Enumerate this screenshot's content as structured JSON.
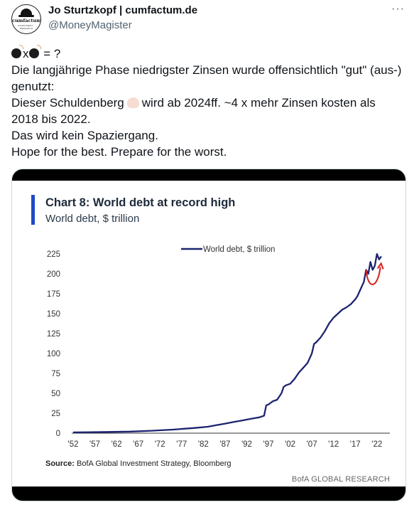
{
  "tweet": {
    "author_name": "Jo Sturtzkopf | cumfactum.de",
    "handle": "@MoneyMagister",
    "more_label": "···",
    "avatar_text": "cumfactum",
    "avatar_subtext": "INVESTMENT · RESEARCH",
    "line1_mid": "x",
    "line1_end": " = ?",
    "line2": "Die langjährige Phase niedrigster Zinsen wurde offensichtlich \"gut\" (aus-)",
    "line3": "genutzt:",
    "line4_a": "Dieser Schuldenberg",
    "line4_b": "wird ab 2024ff. ~4 x mehr Zinsen kosten als",
    "line5": "2018 bis 2022.",
    "line6": "Das wird kein Spaziergang.",
    "line7": "Hope for the best. Prepare for the worst.",
    "icons": [
      "bomb-icon",
      "pointing-down-finger-icon"
    ]
  },
  "chart_data": {
    "type": "line",
    "title": "Chart 8: World debt at record high",
    "subtitle": "World debt, $ trillion",
    "legend": "World debt, $ trillion",
    "legend_position": "top-center",
    "ylim": [
      0,
      225
    ],
    "yticks": [
      "0",
      "25",
      "50",
      "75",
      "100",
      "125",
      "150",
      "175",
      "200",
      "225"
    ],
    "xticks": [
      "'52",
      "'57",
      "'62",
      "'67",
      "'72",
      "'77",
      "'82",
      "'87",
      "'92",
      "'97",
      "'02",
      "'07",
      "'12",
      "'17",
      "'22"
    ],
    "xlim": [
      1952,
      2024
    ],
    "source_label": "Source:",
    "source": "BofA Global Investment Strategy, Bloomberg",
    "brand": "BofA GLOBAL RESEARCH",
    "line_color": "#1c2470",
    "annotation_color": "#d81e1e",
    "annotation": "red curved arrow (dip and rebound) near the end of the series",
    "series": [
      {
        "name": "World debt, $ trillion",
        "x": [
          1952,
          1960,
          1965,
          1970,
          1975,
          1980,
          1983,
          1985,
          1987,
          1989,
          1991,
          1993,
          1995,
          1996,
          1996.5,
          1997,
          1998,
          1999,
          2000,
          2000.5,
          2001,
          2002,
          2003,
          2004,
          2005,
          2006,
          2007,
          2007.5,
          2008,
          2009,
          2010,
          2011,
          2012,
          2013,
          2014,
          2015,
          2016,
          2017,
          2017.5,
          2018,
          2019,
          2019.5,
          2020,
          2020.5,
          2021,
          2021.5,
          2022,
          2022.5,
          2023
        ],
        "values": [
          1,
          1.5,
          2,
          3,
          4.5,
          6.5,
          8,
          10,
          12,
          14,
          16,
          18,
          20,
          22,
          35,
          36,
          40,
          42,
          50,
          58,
          60,
          62,
          68,
          76,
          82,
          88,
          100,
          112,
          114,
          120,
          128,
          138,
          145,
          150,
          155,
          158,
          162,
          168,
          172,
          178,
          190,
          205,
          200,
          215,
          205,
          210,
          225,
          218,
          222
        ]
      }
    ]
  }
}
